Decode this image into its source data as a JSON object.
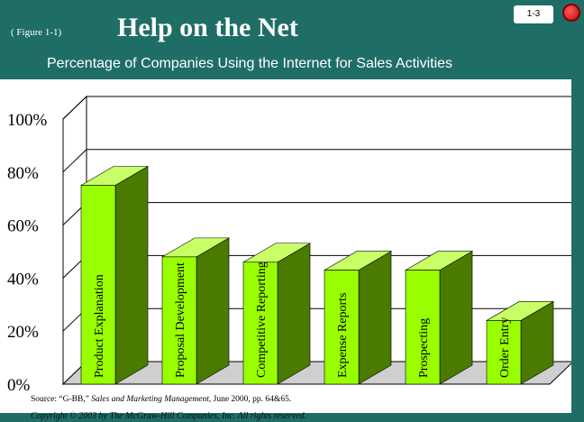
{
  "slide": {
    "figure_label": "( Figure 1-1)",
    "title": "Help on the Net",
    "number": "1-3",
    "subtitle": "Percentage of Companies Using the Internet for Sales Activities",
    "copyright": "Copyright © 2003 by The McGraw-Hill Companies, Inc.  All rights reserved."
  },
  "chart_data": {
    "type": "bar",
    "style": "3d",
    "categories": [
      "Product Explanation",
      "Proposal Development",
      "Competitive Reporting",
      "Expense Reports",
      "Prospecting",
      "Order Entry"
    ],
    "values": [
      75,
      48,
      46,
      43,
      43,
      24
    ],
    "ylim": [
      0,
      100
    ],
    "yticks": [
      0,
      20,
      40,
      60,
      80,
      100
    ],
    "ytick_labels": [
      "0%",
      "20%",
      "40%",
      "60%",
      "80%",
      "100%"
    ],
    "bar_color": "#99ff00",
    "source": {
      "prefix": "Source:  “G-BB,” ",
      "publication": "Sales and Marketing Management,",
      "suffix": " June 2000, pp. 64&65."
    }
  }
}
